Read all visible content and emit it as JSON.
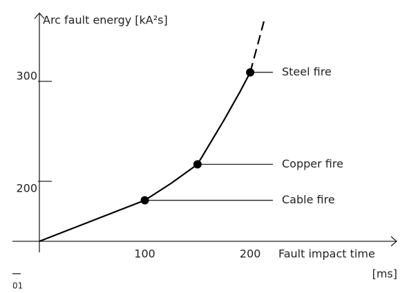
{
  "chart_data": {
    "type": "line",
    "ylabel": "Arc fault energy [kA²s]",
    "xlabel": [
      "Fault impact time",
      "[ms]"
    ],
    "footnote": "01",
    "xlim": [
      0,
      213
    ],
    "xticks": [
      100,
      200
    ],
    "ylim": [
      140,
      360
    ],
    "yticks": [
      200,
      300
    ],
    "color": "#000000",
    "series": [
      {
        "style": "solid",
        "x": [
          0,
          100,
          125,
          150,
          175,
          190,
          200
        ],
        "values": [
          140,
          181,
          198,
          217,
          261,
          289,
          309
        ]
      },
      {
        "style": "dashed",
        "x": [
          200,
          213
        ],
        "values": [
          309,
          360
        ]
      }
    ],
    "annotations": [
      {
        "label": "Steel fire",
        "x": 200,
        "y": 309
      },
      {
        "label": "Copper fire",
        "x": 150,
        "y": 217
      },
      {
        "label": "Cable fire",
        "x": 100,
        "y": 181
      }
    ]
  }
}
